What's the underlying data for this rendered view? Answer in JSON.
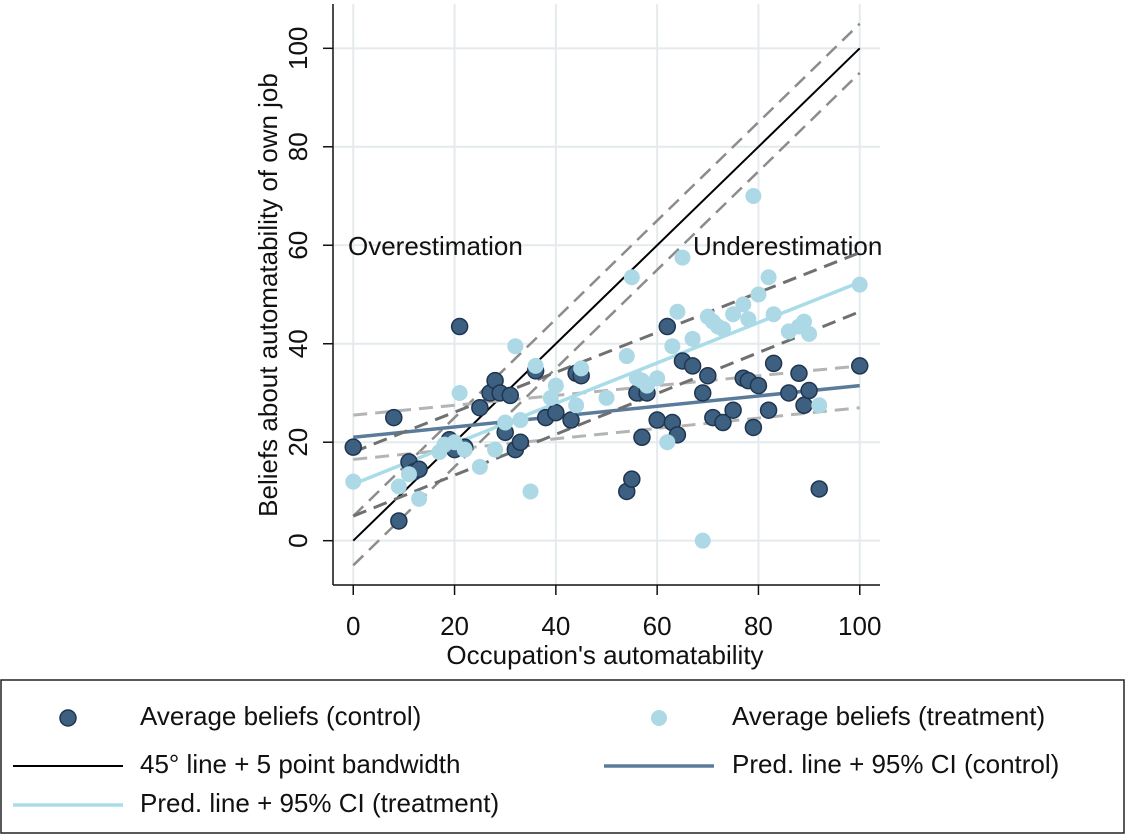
{
  "chart_data": {
    "type": "scatter",
    "x_label": "Occupation's automatability",
    "y_label": "Beliefs about automatability of own job",
    "annotations": [
      "Overestimation",
      "Underestimation"
    ],
    "xlim": [
      -4,
      104
    ],
    "ylim": [
      -9,
      109
    ],
    "xticks": [
      0,
      20,
      40,
      60,
      80,
      100
    ],
    "yticks": [
      0,
      20,
      40,
      60,
      80,
      100
    ],
    "grid": true,
    "series": [
      {
        "name": "Average beliefs (control)",
        "kind": "markers",
        "color": "#3d5f80",
        "edge": "#1f3550",
        "x": [
          0,
          8,
          9,
          11,
          12,
          13,
          19,
          20,
          21,
          22,
          25,
          27,
          28,
          29,
          30,
          31,
          32,
          33,
          36,
          38,
          40,
          43,
          44,
          45,
          54,
          55,
          56,
          57,
          58,
          60,
          62,
          63,
          64,
          65,
          67,
          69,
          70,
          71,
          73,
          75,
          77,
          78,
          79,
          80,
          82,
          83,
          86,
          88,
          89,
          90,
          92,
          100
        ],
        "values": [
          19,
          25,
          4,
          16,
          14,
          14.5,
          20.5,
          18.5,
          43.5,
          19,
          27,
          30,
          32.5,
          30,
          22,
          29.5,
          18.5,
          20,
          34.5,
          25,
          26,
          24.5,
          34,
          33.5,
          10,
          12.5,
          30,
          21,
          30,
          24.5,
          43.5,
          24,
          21.5,
          36.5,
          35.5,
          30,
          33.5,
          25,
          24,
          26.5,
          33,
          32.5,
          23,
          31.5,
          26.5,
          36,
          30,
          34,
          27.5,
          30.5,
          10.5,
          35.5
        ]
      },
      {
        "name": "Average beliefs (treatment)",
        "kind": "markers",
        "color": "#add8e6",
        "x": [
          0,
          9,
          11,
          13,
          17,
          18,
          20,
          21,
          22,
          25,
          28,
          30,
          32,
          33,
          35,
          36,
          39,
          40,
          44,
          45,
          50,
          54,
          55,
          56,
          57,
          58,
          60,
          62,
          63,
          64,
          65,
          67,
          69,
          70,
          71,
          72,
          73,
          75,
          77,
          78,
          79,
          80,
          82,
          83,
          86,
          88,
          89,
          90,
          92,
          100
        ],
        "values": [
          12,
          11,
          13.5,
          8.5,
          18,
          19.5,
          20,
          30,
          18.5,
          15,
          18.5,
          24,
          39.5,
          24.5,
          10,
          35.5,
          29,
          31.5,
          27.5,
          35,
          29,
          37.5,
          53.5,
          33,
          32.5,
          31.5,
          33,
          20,
          39.5,
          46.5,
          57.5,
          41,
          0,
          45.5,
          44.5,
          43.5,
          43,
          46,
          48,
          45,
          70,
          50,
          53.5,
          46,
          42.5,
          43.5,
          44.5,
          42,
          27.5,
          52
        ]
      },
      {
        "name": "45° line + 5 point bandwidth",
        "kind": "line",
        "color": "#000000",
        "band_color": "#8c8c8c",
        "x": [
          0,
          100
        ],
        "values": [
          0,
          100
        ],
        "bandwidth": 5
      },
      {
        "name": "Pred. line + 95% CI (control)",
        "kind": "line",
        "color": "#5b7b9b",
        "ci_color": "#b4b4b4",
        "x": [
          0,
          100
        ],
        "values": [
          21,
          31.5
        ],
        "ci_lower": [
          16.5,
          27
        ],
        "ci_upper": [
          25.5,
          35.5
        ]
      },
      {
        "name": "Pred. line + 95% CI (treatment)",
        "kind": "line",
        "color": "#a8dce8",
        "ci_color": "#707070",
        "x": [
          0,
          100
        ],
        "values": [
          11.5,
          52.5
        ],
        "ci_lower": [
          5,
          46.5
        ],
        "ci_upper": [
          18,
          58.5
        ]
      }
    ]
  }
}
